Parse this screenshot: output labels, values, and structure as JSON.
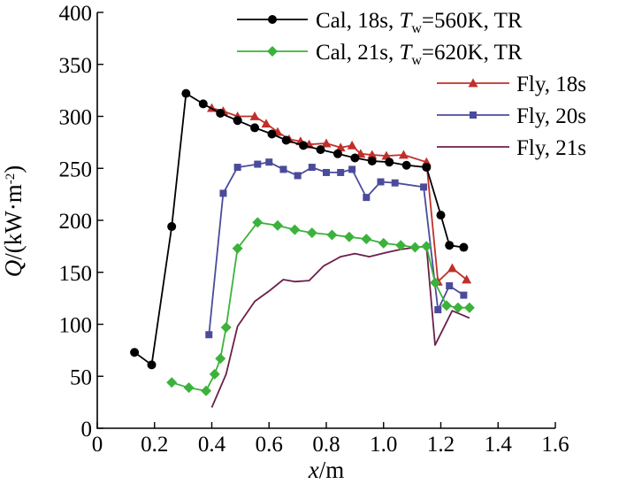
{
  "chart_data": {
    "type": "line",
    "title": "",
    "xlabel": "x/m",
    "ylabel": "Q/(kW·m⁻²)",
    "xlim": [
      0,
      1.6
    ],
    "ylim": [
      0,
      400
    ],
    "xticks": [
      "0",
      "0.2",
      "0.4",
      "0.6",
      "0.8",
      "1.0",
      "1.2",
      "1.4",
      "1.6"
    ],
    "yticks": [
      "0",
      "50",
      "100",
      "150",
      "200",
      "250",
      "300",
      "350",
      "400"
    ],
    "grid": false,
    "legend_position": "top-right",
    "series": [
      {
        "name": "Cal, 18s, Tw=560K, TR",
        "legend_parts": [
          "Cal, 18s, ",
          "T",
          "w",
          "=560K, TR"
        ],
        "color": "#000000",
        "marker": "circle",
        "x": [
          0.13,
          0.19,
          0.26,
          0.31,
          0.37,
          0.43,
          0.49,
          0.55,
          0.61,
          0.66,
          0.72,
          0.78,
          0.84,
          0.9,
          0.96,
          1.02,
          1.08,
          1.15,
          1.2,
          1.23,
          1.28
        ],
        "y": [
          73,
          61,
          194,
          322,
          312,
          303,
          296,
          289,
          283,
          277,
          272,
          268,
          264,
          260,
          257,
          256,
          253,
          251,
          205,
          176,
          174
        ]
      },
      {
        "name": "Cal, 21s, Tw=620K, TR",
        "legend_parts": [
          "Cal, 21s, ",
          "T",
          "w",
          "=620K, TR"
        ],
        "color": "#3cb23c",
        "marker": "diamond",
        "x": [
          0.26,
          0.32,
          0.38,
          0.41,
          0.43,
          0.45,
          0.49,
          0.56,
          0.63,
          0.69,
          0.75,
          0.82,
          0.88,
          0.94,
          1.0,
          1.06,
          1.11,
          1.15,
          1.18,
          1.22,
          1.26,
          1.3
        ],
        "y": [
          44,
          39,
          36,
          52,
          67,
          97,
          173,
          198,
          195,
          191,
          188,
          186,
          184,
          182,
          178,
          176,
          174,
          175,
          140,
          118,
          116,
          116
        ]
      },
      {
        "name": "Fly, 18s",
        "legend_parts": [
          "Fly, 18s"
        ],
        "color": "#c0302a",
        "marker": "triangle",
        "x": [
          0.4,
          0.44,
          0.49,
          0.55,
          0.59,
          0.63,
          0.67,
          0.71,
          0.74,
          0.8,
          0.85,
          0.89,
          0.92,
          0.96,
          1.01,
          1.07,
          1.15,
          1.19,
          1.24,
          1.29
        ],
        "y": [
          308,
          305,
          300,
          300,
          293,
          285,
          278,
          276,
          273,
          274,
          270,
          272,
          264,
          263,
          262,
          263,
          256,
          141,
          154,
          143
        ]
      },
      {
        "name": "Fly, 20s",
        "legend_parts": [
          "Fly, 20s"
        ],
        "color": "#4b4b9b",
        "marker": "square",
        "x": [
          0.39,
          0.44,
          0.49,
          0.56,
          0.6,
          0.65,
          0.7,
          0.75,
          0.8,
          0.85,
          0.89,
          0.94,
          0.99,
          1.04,
          1.14,
          1.19,
          1.23,
          1.28
        ],
        "y": [
          90,
          226,
          251,
          254,
          256,
          249,
          243,
          251,
          246,
          246,
          249,
          222,
          237,
          236,
          232,
          114,
          137,
          128
        ]
      },
      {
        "name": "Fly, 21s",
        "legend_parts": [
          "Fly, 21s"
        ],
        "color": "#6b1f4a",
        "marker": "none",
        "x": [
          0.4,
          0.45,
          0.49,
          0.55,
          0.6,
          0.65,
          0.69,
          0.74,
          0.79,
          0.85,
          0.9,
          0.95,
          1.01,
          1.06,
          1.11,
          1.15,
          1.18,
          1.24,
          1.3
        ],
        "y": [
          20,
          52,
          98,
          122,
          132,
          143,
          141,
          142,
          156,
          165,
          168,
          165,
          169,
          172,
          174,
          175,
          80,
          113,
          106
        ]
      }
    ]
  }
}
